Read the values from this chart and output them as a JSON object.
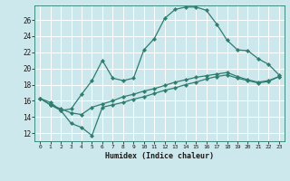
{
  "xlabel": "Humidex (Indice chaleur)",
  "bg_color": "#cce8ed",
  "grid_color": "#ffffff",
  "line_color": "#2e7d6e",
  "xlim": [
    -0.5,
    23.5
  ],
  "ylim": [
    11.0,
    27.8
  ],
  "xticks": [
    0,
    1,
    2,
    3,
    4,
    5,
    6,
    7,
    8,
    9,
    10,
    11,
    12,
    13,
    14,
    15,
    16,
    17,
    18,
    19,
    20,
    21,
    22,
    23
  ],
  "yticks": [
    12,
    14,
    16,
    18,
    20,
    22,
    24,
    26
  ],
  "curve1_x": [
    0,
    1,
    2,
    3,
    4,
    5,
    6,
    7,
    8,
    9,
    10,
    11,
    12,
    13,
    14,
    15,
    16,
    17,
    18,
    19,
    20,
    21,
    22,
    23
  ],
  "curve1_y": [
    16.3,
    15.8,
    14.8,
    15.0,
    16.8,
    18.5,
    21.0,
    18.8,
    18.5,
    18.8,
    22.3,
    23.7,
    26.2,
    27.3,
    27.6,
    27.6,
    27.2,
    25.5,
    23.5,
    22.3,
    22.2,
    21.2,
    20.5,
    19.2
  ],
  "curve2_x": [
    0,
    1,
    2,
    3,
    4,
    5,
    6,
    7,
    8,
    9,
    10,
    11,
    12,
    13,
    14,
    15,
    16,
    17,
    18,
    19,
    20,
    21,
    22,
    23
  ],
  "curve2_y": [
    16.3,
    15.5,
    15.0,
    14.5,
    14.3,
    15.2,
    15.6,
    16.0,
    16.5,
    16.8,
    17.2,
    17.5,
    17.9,
    18.3,
    18.6,
    18.9,
    19.1,
    19.3,
    19.5,
    19.0,
    18.6,
    18.3,
    18.5,
    19.0
  ],
  "curve3_x": [
    0,
    1,
    2,
    3,
    4,
    5,
    6,
    7,
    8,
    9,
    10,
    11,
    12,
    13,
    14,
    15,
    16,
    17,
    18,
    19,
    20,
    21,
    22,
    23
  ],
  "curve3_y": [
    16.3,
    15.5,
    14.8,
    13.2,
    12.7,
    11.7,
    15.2,
    15.5,
    15.8,
    16.2,
    16.5,
    16.9,
    17.3,
    17.6,
    18.0,
    18.3,
    18.7,
    19.0,
    19.2,
    18.8,
    18.5,
    18.2,
    18.4,
    19.0
  ]
}
